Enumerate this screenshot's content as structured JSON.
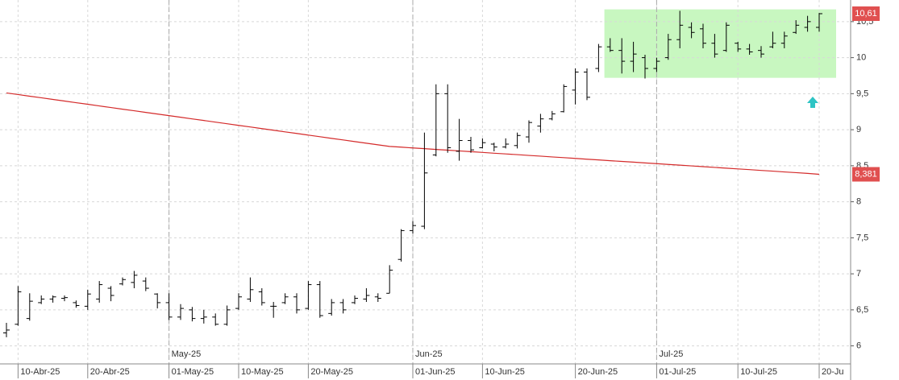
{
  "chart_data": {
    "type": "ohlc",
    "categories": [
      null,
      "10-Abr-25",
      null,
      null,
      null,
      null,
      null,
      "20-Abr-25",
      null,
      null,
      null,
      null,
      null,
      null,
      "01-May-25",
      null,
      null,
      null,
      null,
      null,
      "10-May-25",
      null,
      null,
      null,
      null,
      null,
      "20-May-25",
      null,
      null,
      null,
      null,
      null,
      null,
      null,
      null,
      "01-Jun-25",
      null,
      null,
      null,
      null,
      null,
      "10-Jun-25",
      null,
      null,
      null,
      null,
      null,
      null,
      null,
      "20-Jun-25",
      null,
      null,
      null,
      null,
      null,
      null,
      "01-Jul-25",
      null,
      null,
      null,
      null,
      null,
      null,
      "10-Jul-25",
      null,
      null,
      null,
      null,
      null,
      null,
      "20-Ju"
    ],
    "periods": [
      null,
      null,
      null,
      null,
      null,
      null,
      null,
      null,
      null,
      null,
      null,
      null,
      null,
      null,
      "May-25",
      null,
      null,
      null,
      null,
      null,
      null,
      null,
      null,
      null,
      null,
      null,
      null,
      null,
      null,
      null,
      null,
      null,
      null,
      null,
      null,
      "Jun-25",
      null,
      null,
      null,
      null,
      null,
      null,
      null,
      null,
      null,
      null,
      null,
      null,
      null,
      null,
      null,
      null,
      null,
      null,
      null,
      null,
      "Jul-25",
      null,
      null,
      null,
      null,
      null,
      null,
      null,
      null,
      null,
      null,
      null,
      null,
      null,
      null
    ],
    "open": [
      6.18,
      6.3,
      6.38,
      6.6,
      6.65,
      6.66,
      6.6,
      6.55,
      6.65,
      6.8,
      6.86,
      6.88,
      6.9,
      6.72,
      6.6,
      6.4,
      6.5,
      6.38,
      6.4,
      6.3,
      6.52,
      6.65,
      6.75,
      6.55,
      6.6,
      6.68,
      6.52,
      6.85,
      6.45,
      6.6,
      6.6,
      6.65,
      6.68,
      6.73,
      7.2,
      7.6,
      7.66,
      8.65,
      9.5,
      8.7,
      8.85,
      8.75,
      8.8,
      8.76,
      8.78,
      8.9,
      9.05,
      9.15,
      9.25,
      9.55,
      9.8,
      9.85,
      10.15,
      10.1,
      9.95,
      10.0,
      9.85,
      10.0,
      10.25,
      10.42,
      10.4,
      10.2,
      10.1,
      10.2,
      10.12,
      10.1,
      10.15,
      10.2,
      10.35,
      10.42,
      10.42
    ],
    "high": [
      6.32,
      6.83,
      6.73,
      6.7,
      6.7,
      6.7,
      6.63,
      6.78,
      6.9,
      6.83,
      6.95,
      7.04,
      6.95,
      6.73,
      6.73,
      6.58,
      6.54,
      6.5,
      6.45,
      6.56,
      6.73,
      6.95,
      6.8,
      6.61,
      6.73,
      6.73,
      6.9,
      6.9,
      6.65,
      6.65,
      6.7,
      6.8,
      6.73,
      7.12,
      7.62,
      7.73,
      8.96,
      9.63,
      9.63,
      9.15,
      8.9,
      8.88,
      8.82,
      8.88,
      8.96,
      9.13,
      9.22,
      9.26,
      9.63,
      9.85,
      9.85,
      10.19,
      10.27,
      10.27,
      10.22,
      10.04,
      10.0,
      10.33,
      10.65,
      10.49,
      10.47,
      10.33,
      10.49,
      10.22,
      10.19,
      10.16,
      10.36,
      10.36,
      10.52,
      10.58,
      10.62
    ],
    "low": [
      6.12,
      6.28,
      6.35,
      6.58,
      6.6,
      6.62,
      6.53,
      6.5,
      6.6,
      6.62,
      6.84,
      6.8,
      6.76,
      6.52,
      6.36,
      6.36,
      6.34,
      6.31,
      6.28,
      6.28,
      6.5,
      6.61,
      6.56,
      6.39,
      6.58,
      6.45,
      6.5,
      6.39,
      6.42,
      6.45,
      6.58,
      6.61,
      6.61,
      6.73,
      7.17,
      7.56,
      7.62,
      8.63,
      8.68,
      8.57,
      8.68,
      8.74,
      8.7,
      8.74,
      8.74,
      8.82,
      8.96,
      9.13,
      9.24,
      9.35,
      9.41,
      9.8,
      10.08,
      9.78,
      9.8,
      9.71,
      9.8,
      9.97,
      10.13,
      10.27,
      10.13,
      10.0,
      10.08,
      10.08,
      10.04,
      10.0,
      10.13,
      10.13,
      10.33,
      10.36,
      10.36
    ],
    "close": [
      6.22,
      6.75,
      6.62,
      6.65,
      6.68,
      6.67,
      6.56,
      6.72,
      6.85,
      6.7,
      6.92,
      6.98,
      6.8,
      6.6,
      6.4,
      6.52,
      6.38,
      6.4,
      6.3,
      6.5,
      6.68,
      6.78,
      6.6,
      6.55,
      6.68,
      6.5,
      6.85,
      6.42,
      6.6,
      6.5,
      6.66,
      6.7,
      6.66,
      7.05,
      7.6,
      7.67,
      8.4,
      9.5,
      8.75,
      8.85,
      8.72,
      8.82,
      8.76,
      8.8,
      8.92,
      9.1,
      9.15,
      9.22,
      9.6,
      9.8,
      9.45,
      10.15,
      10.1,
      9.95,
      10.05,
      9.85,
      9.95,
      10.25,
      10.45,
      10.35,
      10.2,
      10.05,
      10.45,
      10.12,
      10.08,
      10.05,
      10.2,
      10.3,
      10.45,
      10.5,
      10.61
    ],
    "color": "#000000",
    "ma": {
      "color": "#d42a2a",
      "values": [
        9.51,
        9.488,
        9.465,
        9.443,
        9.42,
        9.398,
        9.375,
        9.353,
        9.33,
        9.308,
        9.285,
        9.263,
        9.24,
        9.218,
        9.195,
        9.173,
        9.15,
        9.128,
        9.105,
        9.083,
        9.06,
        9.038,
        9.015,
        8.993,
        8.97,
        8.948,
        8.925,
        8.903,
        8.88,
        8.858,
        8.835,
        8.813,
        8.79,
        8.768,
        8.758,
        8.747,
        8.737,
        8.726,
        8.716,
        8.706,
        8.695,
        8.685,
        8.674,
        8.664,
        8.654,
        8.643,
        8.633,
        8.622,
        8.612,
        8.602,
        8.591,
        8.581,
        8.57,
        8.56,
        8.55,
        8.539,
        8.529,
        8.518,
        8.508,
        8.498,
        8.487,
        8.477,
        8.466,
        8.456,
        8.446,
        8.435,
        8.425,
        8.414,
        8.404,
        8.394,
        8.381
      ]
    },
    "last_price": {
      "value": 10.61,
      "label": "10,61"
    },
    "ma_last": {
      "value": 8.381,
      "label": "8,381"
    },
    "zone": {
      "range": [
        9.72,
        10.67
      ],
      "color": "#c8f7c0"
    },
    "ylim": [
      5.75,
      10.8
    ],
    "yticks": [
      6,
      {
        "value": 6.5,
        "label": "6,5"
      },
      7,
      {
        "value": 7.5,
        "label": "7,5"
      },
      8,
      {
        "value": 8.5,
        "label": "8,5"
      },
      9,
      {
        "value": 9.5,
        "label": "9,5"
      },
      10,
      {
        "value": 10.5,
        "label": "10,5"
      }
    ],
    "grid": true
  }
}
